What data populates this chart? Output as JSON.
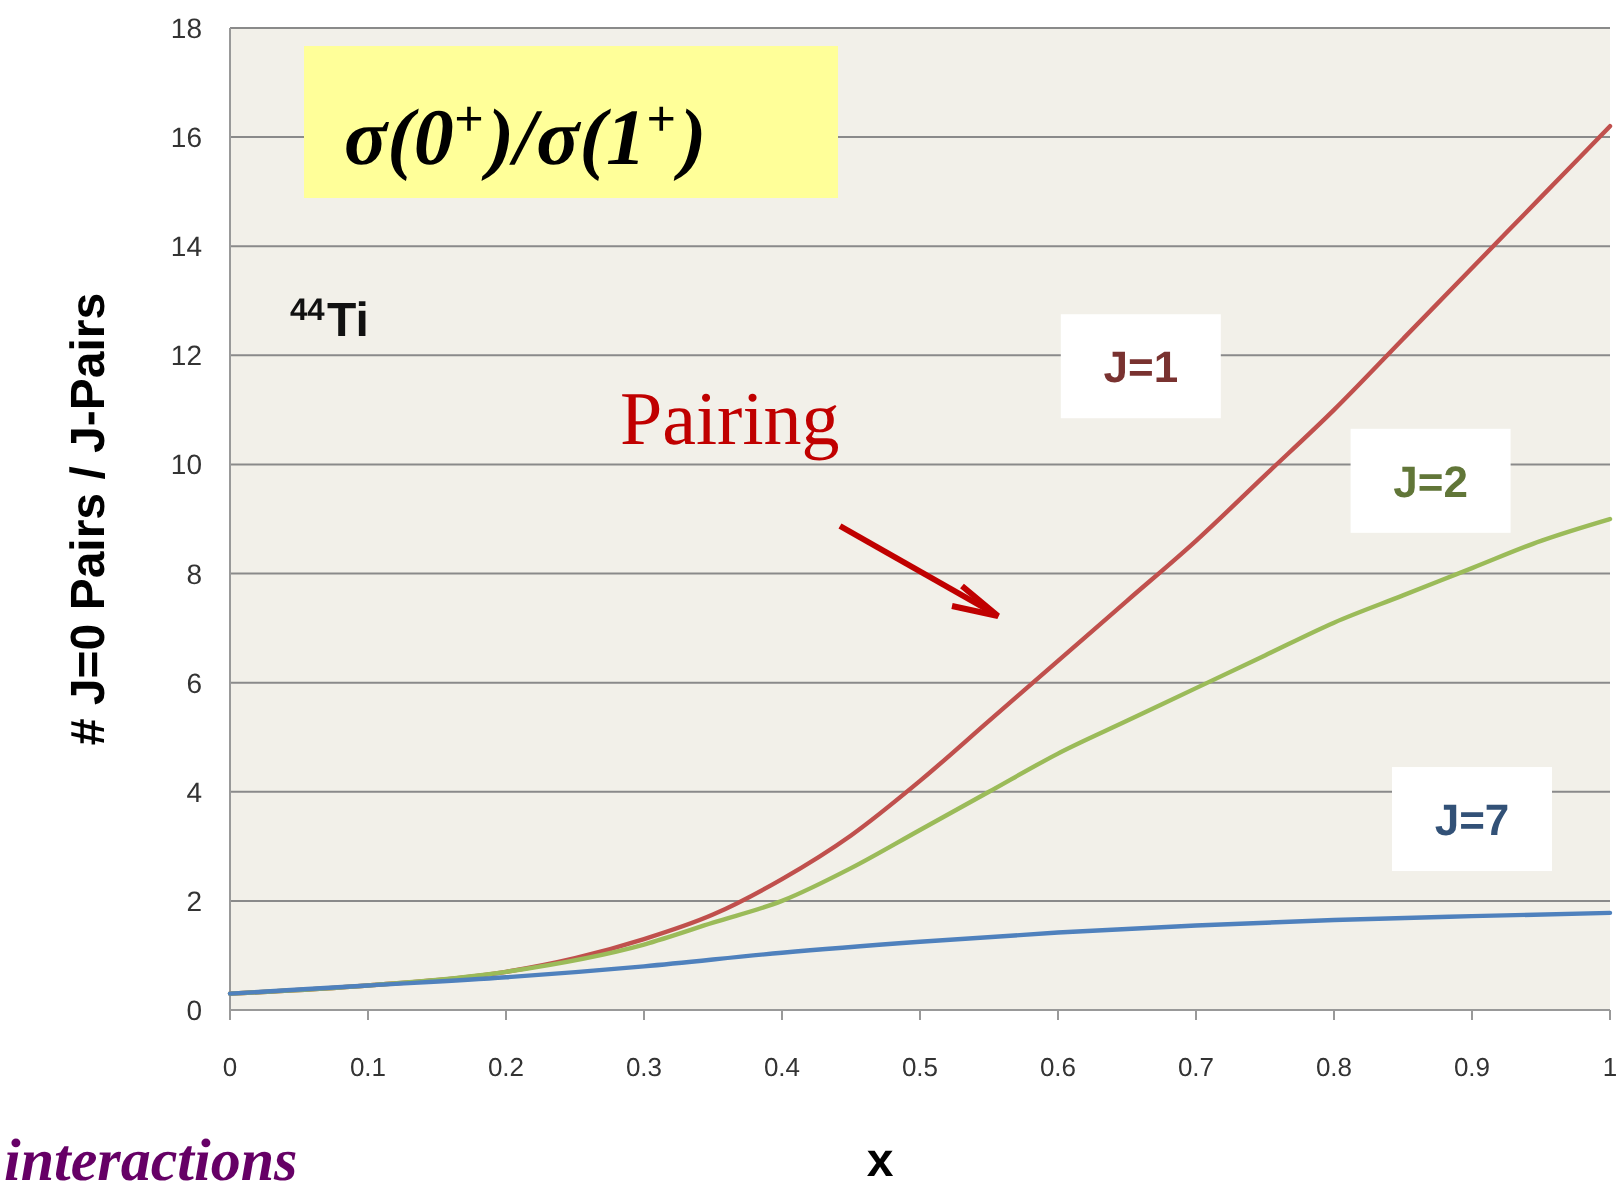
{
  "chart_data": {
    "type": "line",
    "title": "σ(0$^{+}$)/σ(1$^{+}$)",
    "xlabel": "x",
    "ylabel": "# J=0 Pairs / J-Pairs",
    "annotations": [
      "$^{44}$Ti",
      "Pairing",
      "interactions"
    ],
    "xlim": [
      0,
      1
    ],
    "xticks": [
      0,
      0.1,
      0.2,
      0.3,
      0.4,
      0.5,
      0.6,
      0.7,
      0.8,
      0.9,
      1
    ],
    "ylim": [
      0,
      18
    ],
    "yticks": [
      0,
      2,
      4,
      6,
      8,
      10,
      12,
      14,
      16,
      18
    ],
    "grid": "y",
    "marker": "none",
    "line_style": "solid",
    "series": [
      {
        "name": "J=1",
        "color": "#c0504d",
        "x": [
          0,
          0.1,
          0.2,
          0.25,
          0.3,
          0.35,
          0.4,
          0.45,
          0.5,
          0.55,
          0.6,
          0.65,
          0.7,
          0.75,
          0.8,
          0.85,
          0.9,
          0.95,
          1
        ],
        "values": [
          0.3,
          0.45,
          0.7,
          0.95,
          1.3,
          1.75,
          2.4,
          3.2,
          4.2,
          5.3,
          6.4,
          7.5,
          8.6,
          9.8,
          11.0,
          12.3,
          13.6,
          14.9,
          16.2
        ]
      },
      {
        "name": "J=2",
        "color": "#9bbb59",
        "x": [
          0,
          0.1,
          0.2,
          0.3,
          0.35,
          0.4,
          0.45,
          0.5,
          0.55,
          0.6,
          0.65,
          0.7,
          0.75,
          0.8,
          0.85,
          0.9,
          0.95,
          1
        ],
        "values": [
          0.3,
          0.45,
          0.7,
          1.2,
          1.6,
          2.0,
          2.6,
          3.3,
          4.0,
          4.7,
          5.3,
          5.9,
          6.5,
          7.1,
          7.6,
          8.1,
          8.6,
          9.0
        ]
      },
      {
        "name": "J=7",
        "color": "#4f81bd",
        "x": [
          0,
          0.1,
          0.2,
          0.3,
          0.4,
          0.5,
          0.6,
          0.7,
          0.8,
          0.9,
          1
        ],
        "values": [
          0.3,
          0.45,
          0.6,
          0.8,
          1.05,
          1.25,
          1.42,
          1.55,
          1.65,
          1.72,
          1.78
        ]
      }
    ]
  }
}
